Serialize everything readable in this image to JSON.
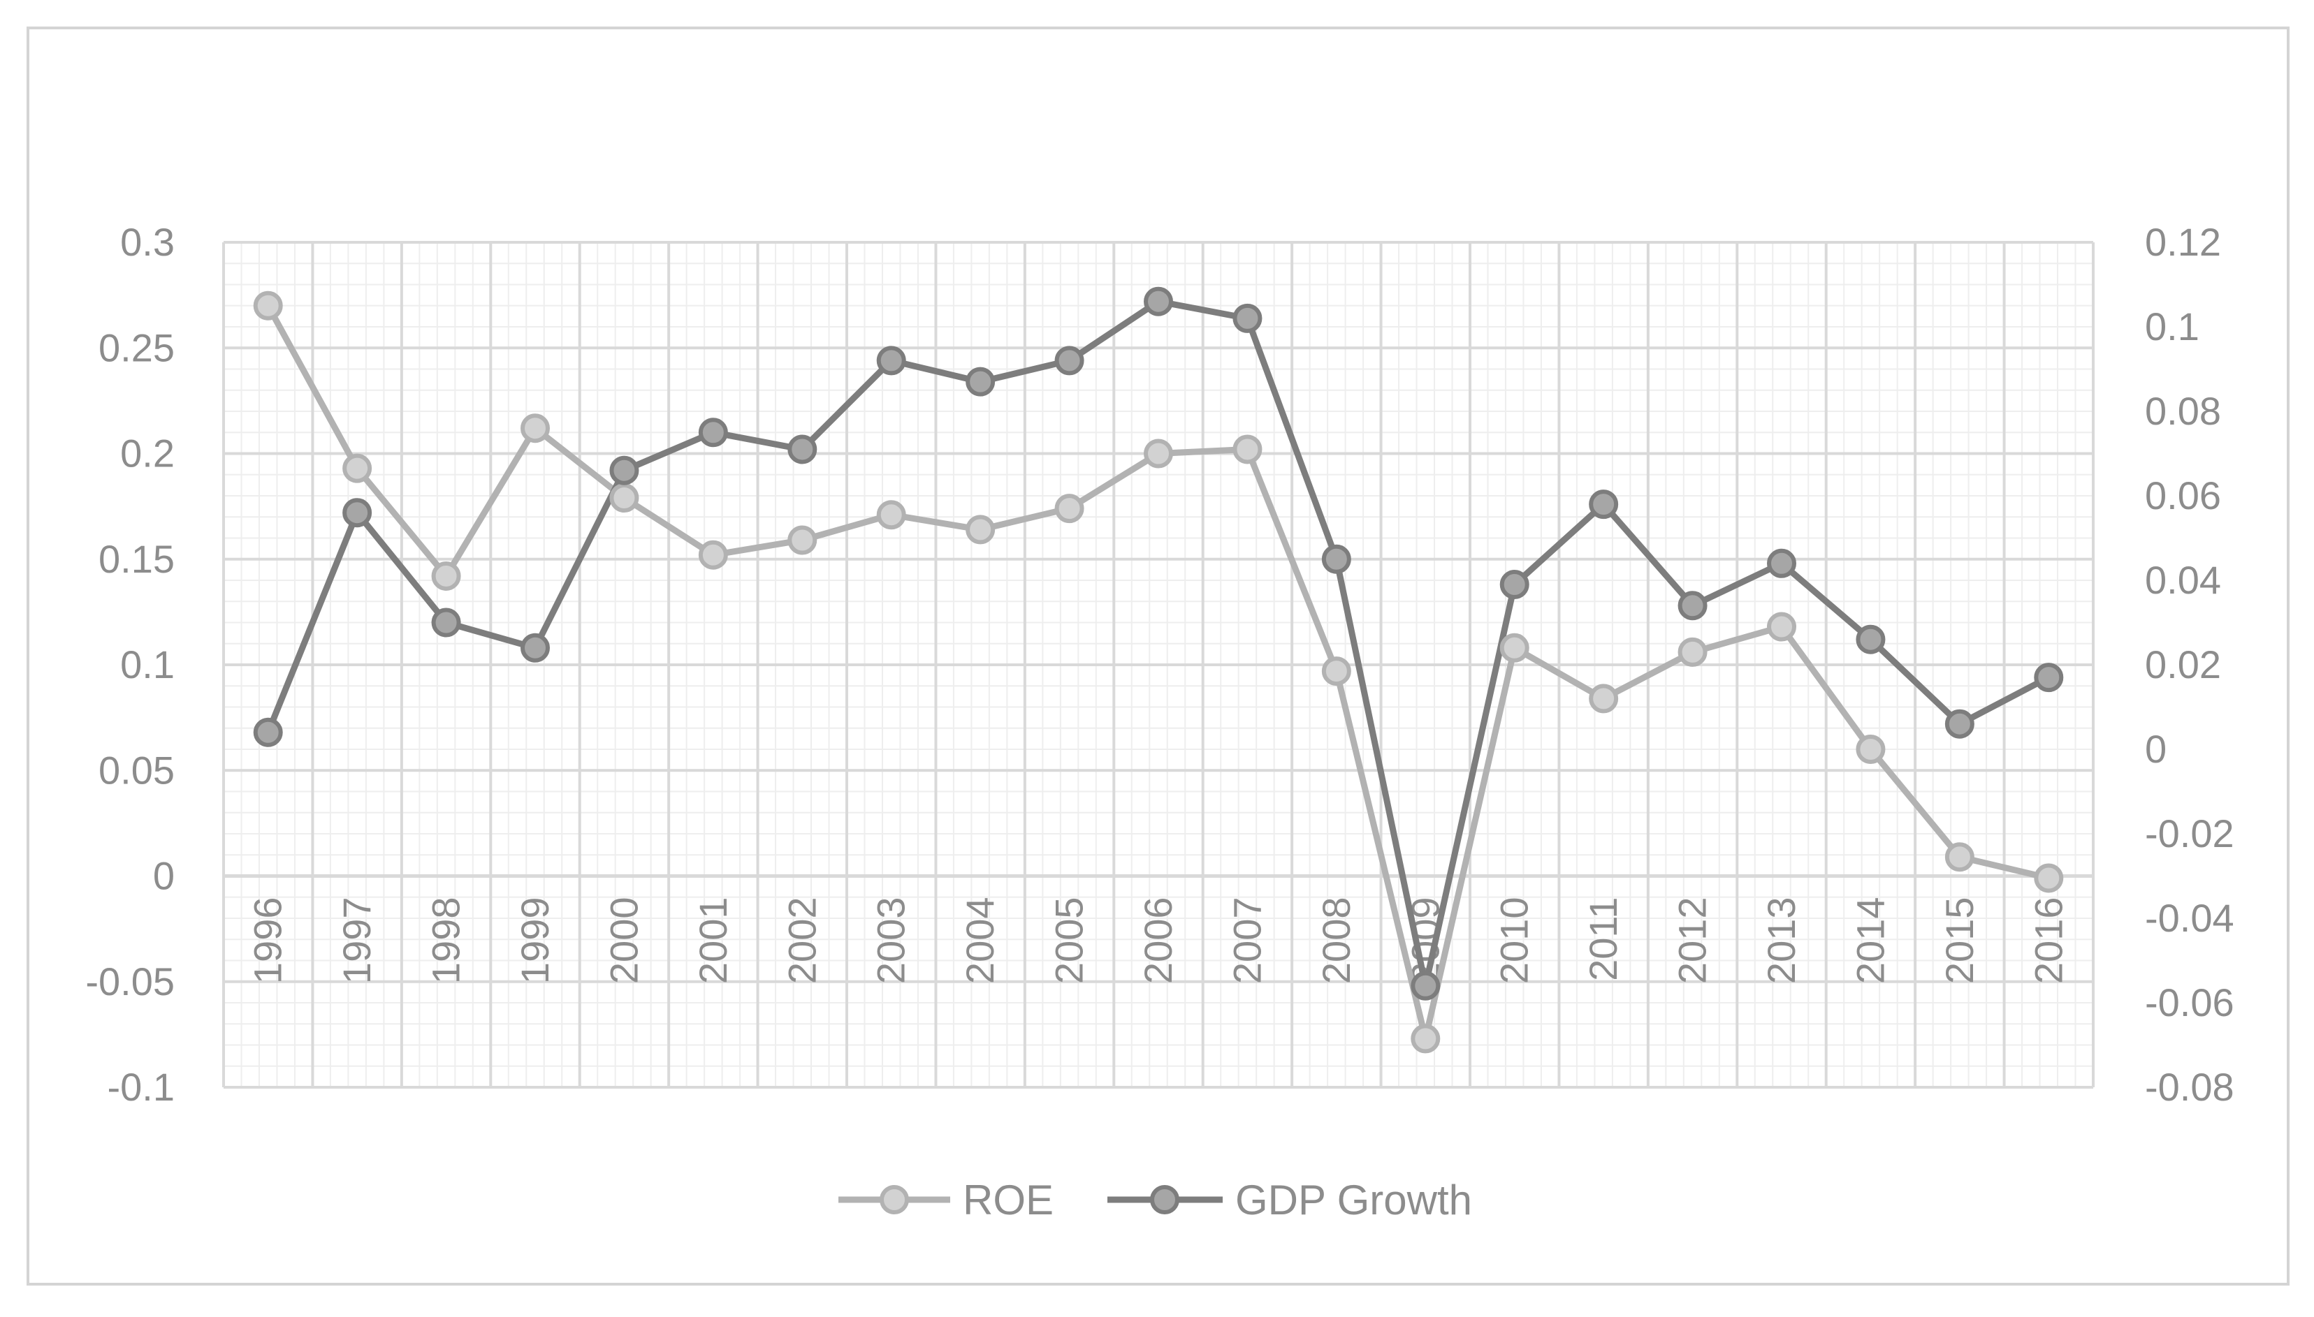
{
  "colors": {
    "background": "#ffffff",
    "frame": "#d4d4d4",
    "grid_major": "#d9d9d9",
    "grid_minor": "#eeeeee",
    "axis_text": "#8c8c8c",
    "roe_line": "#b2b2b2",
    "roe_marker_fill": "#d2d2d2",
    "gdp_line": "#7d7d7d",
    "gdp_marker_fill": "#a6a6a6"
  },
  "chart_data": {
    "type": "line",
    "title": "",
    "xlabel": "",
    "ylabel": "",
    "categories": [
      "1996",
      "1997",
      "1998",
      "1999",
      "2000",
      "2001",
      "2002",
      "2003",
      "2004",
      "2005",
      "2006",
      "2007",
      "2008",
      "2009",
      "2010",
      "2011",
      "2012",
      "2013",
      "2014",
      "2015",
      "2016"
    ],
    "primary_axis": {
      "ylim": [
        -0.1,
        0.3
      ],
      "ticks": [
        0.3,
        0.25,
        0.2,
        0.15,
        0.1,
        0.05,
        0,
        -0.05,
        -0.1
      ],
      "tick_labels": [
        "0.3",
        "0.25",
        "0.2",
        "0.15",
        "0.1",
        "0.05",
        "0",
        "-0.05",
        "-0.1"
      ]
    },
    "secondary_axis": {
      "ylim": [
        -0.08,
        0.12
      ],
      "ticks": [
        0.12,
        0.1,
        0.08,
        0.06,
        0.04,
        0.02,
        0,
        -0.02,
        -0.04,
        -0.06,
        -0.08
      ],
      "tick_labels": [
        "0.12",
        "0.1",
        "0.08",
        "0.06",
        "0.04",
        "0.02",
        "0",
        "-0.02",
        "-0.04",
        "-0.06",
        "-0.08"
      ]
    },
    "series": [
      {
        "name": "ROE",
        "axis": "primary",
        "values": [
          0.27,
          0.193,
          0.142,
          0.212,
          0.179,
          0.152,
          0.159,
          0.171,
          0.164,
          0.174,
          0.2,
          0.202,
          0.097,
          -0.077,
          0.108,
          0.084,
          0.106,
          0.118,
          0.06,
          0.009,
          -0.001
        ]
      },
      {
        "name": "GDP Growth",
        "axis": "secondary",
        "values": [
          0.004,
          0.056,
          0.03,
          0.024,
          0.066,
          0.075,
          0.071,
          0.092,
          0.087,
          0.092,
          0.106,
          0.102,
          0.045,
          -0.056,
          0.039,
          0.058,
          0.034,
          0.044,
          0.026,
          0.006,
          0.017
        ]
      }
    ],
    "legend": {
      "position": "bottom",
      "entries": [
        "ROE",
        "GDP Growth"
      ]
    },
    "grid": true
  }
}
